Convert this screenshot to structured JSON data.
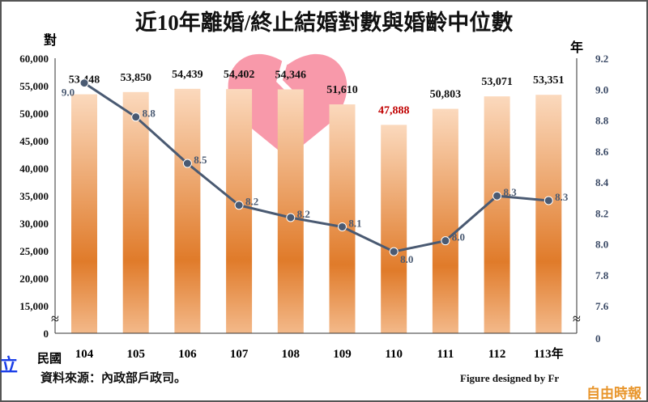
{
  "chart_data": {
    "type": "bar+line",
    "title": "近10年離婚/終止結婚對數與婚齡中位數",
    "categories": [
      "104",
      "105",
      "106",
      "107",
      "108",
      "109",
      "110",
      "111",
      "112",
      "113年"
    ],
    "x_prefix_label": "民國",
    "left_axis": {
      "unit_label": "對",
      "ticks": [
        "60,000",
        "55,000",
        "50,000",
        "45,000",
        "40,000",
        "35,000",
        "30,000",
        "25,000",
        "20,000",
        "15,000",
        "0"
      ],
      "range": [
        0,
        60000
      ],
      "axis_break": true
    },
    "right_axis": {
      "unit_label": "年",
      "ticks": [
        "9.2",
        "9.0",
        "8.8",
        "8.6",
        "8.4",
        "8.2",
        "8.0",
        "7.8",
        "7.6",
        "0"
      ],
      "range": [
        0,
        9.2
      ],
      "axis_break": true
    },
    "series": [
      {
        "type": "bar",
        "values": [
          53448,
          53850,
          54439,
          54402,
          54346,
          51610,
          47888,
          50803,
          53071,
          53351
        ],
        "labels": [
          "53,448",
          "53,850",
          "54,439",
          "54,402",
          "54,346",
          "51,610",
          "47,888",
          "50,803",
          "53,071",
          "53,351"
        ],
        "highlight_index": 6,
        "highlight_color": "#c00000",
        "bar_color": "#e07b2a"
      },
      {
        "type": "line",
        "values": [
          9.04,
          8.82,
          8.52,
          8.25,
          8.17,
          8.11,
          7.95,
          8.02,
          8.31,
          8.28
        ],
        "labels": [
          "9.0",
          "8.8",
          "8.5",
          "8.2",
          "8.2",
          "8.1",
          "8.0",
          "8.0",
          "8.3",
          "8.3"
        ],
        "color": "#4a5a72"
      }
    ],
    "grid": false
  },
  "source": "資料來源：內政部戶政司。",
  "credit": "Figure designed by Fr",
  "logo": "自由時報",
  "edge_char": "立"
}
